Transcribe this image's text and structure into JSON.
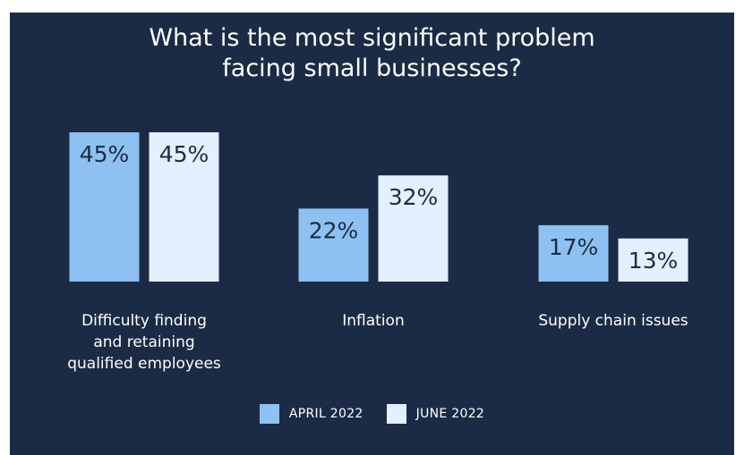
{
  "title_lines": [
    "What is the most significant problem",
    "facing small businesses?"
  ],
  "colors": {
    "background": "#1c2b45",
    "april": "#8ec0f1",
    "june": "#e4efff",
    "text": "#ffffff",
    "label_text": "#1c2b45"
  },
  "chart_data": {
    "type": "bar",
    "title": "What is the most significant problem facing small businesses?",
    "categories": [
      [
        "Difficulty finding",
        "and retaining",
        "qualified employees"
      ],
      [
        "Inflation"
      ],
      [
        "Supply chain issues"
      ]
    ],
    "series": [
      {
        "name": "APRIL 2022",
        "values": [
          45,
          22,
          17
        ],
        "labels": [
          "45%",
          "22%",
          "17%"
        ]
      },
      {
        "name": "JUNE 2022",
        "values": [
          45,
          32,
          13
        ],
        "labels": [
          "45%",
          "32%",
          "13%"
        ]
      }
    ],
    "legend_position": "bottom",
    "grid": false,
    "ylim": [
      0,
      45
    ]
  }
}
